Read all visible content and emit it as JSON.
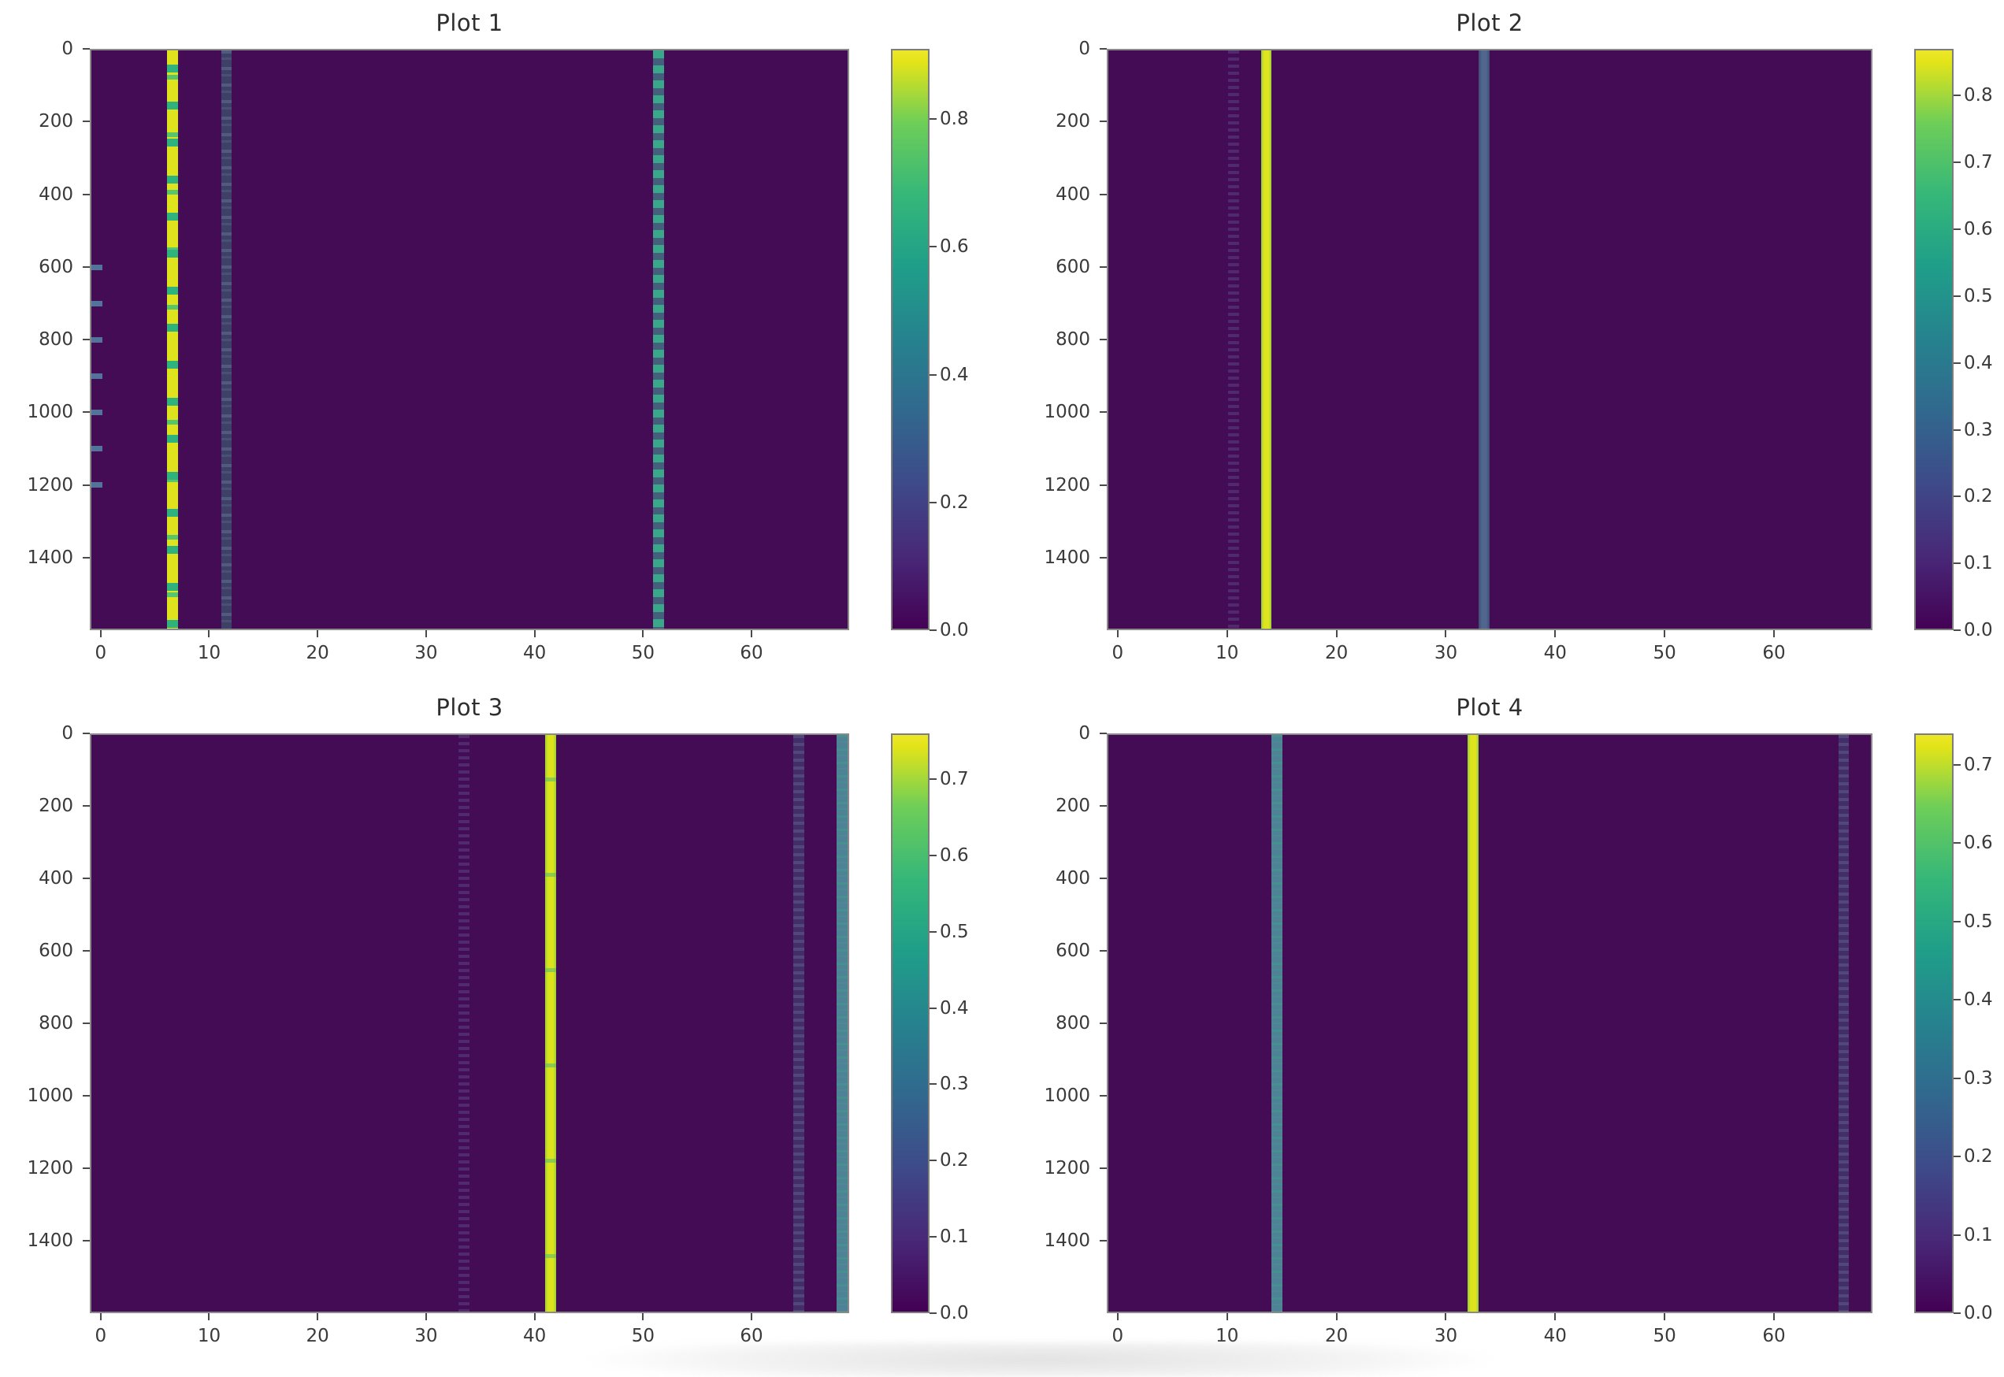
{
  "figure": {
    "background": "#ffffff",
    "colormap": "viridis",
    "background_value_color": "#440c54",
    "grid": false,
    "layout": "2x2 subplots, each with right-side colorbar"
  },
  "chart_data": [
    {
      "id": "plot1",
      "type": "heatmap",
      "title": "Plot 1",
      "colormap": "viridis",
      "shape_rows": 1600,
      "shape_cols": 70,
      "x_range": [
        -0.5,
        69.5
      ],
      "y_range_top_to_bottom": [
        0,
        1600
      ],
      "x_ticks": [
        0,
        10,
        20,
        30,
        40,
        50,
        60
      ],
      "y_ticks": [
        0,
        200,
        400,
        600,
        800,
        1000,
        1200,
        1400
      ],
      "background_value": 0.0,
      "vmax": 0.91,
      "colorbar_ticks": [
        "0.0",
        "0.2",
        "0.4",
        "0.6",
        "0.8"
      ],
      "columns": [
        {
          "x": 0,
          "style": "edge-dashes",
          "approx_value": 0.2,
          "pattern": "sparse short dashes, rows ~600-1250 only",
          "band_top_frac": 0.37,
          "band_height_frac": 0.42
        },
        {
          "x": 7,
          "style": "yellow-green-dashed",
          "approx_value_range": [
            0.5,
            0.91
          ],
          "pattern": "dense dashes alternating yellow and green, full height"
        },
        {
          "x": 12,
          "style": "slate-stipple",
          "approx_value": 0.12,
          "pattern": "faint stippled column, full height"
        },
        {
          "x": 52,
          "style": "teal-dashed",
          "approx_value": 0.45,
          "pattern": "regular teal dashes over faint slate, full height"
        }
      ]
    },
    {
      "id": "plot2",
      "type": "heatmap",
      "title": "Plot 2",
      "colormap": "viridis",
      "shape_rows": 1600,
      "shape_cols": 70,
      "x_range": [
        -0.5,
        69.5
      ],
      "y_range_top_to_bottom": [
        0,
        1600
      ],
      "x_ticks": [
        0,
        10,
        20,
        30,
        40,
        50,
        60
      ],
      "y_ticks": [
        0,
        200,
        400,
        600,
        800,
        1000,
        1200,
        1400
      ],
      "background_value": 0.0,
      "vmax": 0.87,
      "colorbar_ticks": [
        "0.0",
        "0.1",
        "0.2",
        "0.3",
        "0.4",
        "0.5",
        "0.6",
        "0.7",
        "0.8"
      ],
      "columns": [
        {
          "x": 11,
          "style": "xfaint-dotted",
          "approx_value": 0.05,
          "pattern": "barely visible dotted column"
        },
        {
          "x": 14,
          "style": "yellow-solid",
          "approx_value": 0.87,
          "pattern": "solid bright column, full height"
        },
        {
          "x": 34,
          "style": "slate-solid",
          "approx_value": 0.25,
          "pattern": "solid slate-blue column, full height"
        }
      ]
    },
    {
      "id": "plot3",
      "type": "heatmap",
      "title": "Plot 3",
      "colormap": "viridis",
      "shape_rows": 1600,
      "shape_cols": 70,
      "x_range": [
        -0.5,
        69.5
      ],
      "y_range_top_to_bottom": [
        0,
        1600
      ],
      "x_ticks": [
        0,
        10,
        20,
        30,
        40,
        50,
        60
      ],
      "y_ticks": [
        0,
        200,
        400,
        600,
        800,
        1000,
        1200,
        1400
      ],
      "background_value": 0.0,
      "vmax": 0.76,
      "colorbar_ticks": [
        "0.0",
        "0.1",
        "0.2",
        "0.3",
        "0.4",
        "0.5",
        "0.6",
        "0.7"
      ],
      "columns": [
        {
          "x": 34,
          "style": "xfaint-dotted",
          "approx_value": 0.04,
          "pattern": "barely visible dotted column"
        },
        {
          "x": 42,
          "style": "yellow-solid-fleck",
          "approx_value": 0.76,
          "pattern": "solid bright column with sparse teal flecks, full height"
        },
        {
          "x": 65,
          "style": "slate-faint",
          "approx_value": 0.1,
          "pattern": "faint stippled slate column, full height"
        },
        {
          "x": 69,
          "style": "teal-solid",
          "approx_value": 0.35,
          "pattern": "teal column at right edge, full height"
        }
      ]
    },
    {
      "id": "plot4",
      "type": "heatmap",
      "title": "Plot 4",
      "colormap": "viridis",
      "shape_rows": 1600,
      "shape_cols": 70,
      "x_range": [
        -0.5,
        69.5
      ],
      "y_range_top_to_bottom": [
        0,
        1600
      ],
      "x_ticks": [
        0,
        10,
        20,
        30,
        40,
        50,
        60
      ],
      "y_ticks": [
        0,
        200,
        400,
        600,
        800,
        1000,
        1200,
        1400
      ],
      "background_value": 0.0,
      "vmax": 0.74,
      "colorbar_ticks": [
        "0.0",
        "0.1",
        "0.2",
        "0.3",
        "0.4",
        "0.5",
        "0.6",
        "0.7"
      ],
      "columns": [
        {
          "x": 15,
          "style": "teal-solid",
          "approx_value": 0.45,
          "pattern": "solid teal column with green stipple, full height"
        },
        {
          "x": 33,
          "style": "yellow-solid",
          "approx_value": 0.74,
          "pattern": "solid bright column, full height"
        },
        {
          "x": 67,
          "style": "slate-faint",
          "approx_value": 0.07,
          "pattern": "very faint stippled slate column, full height"
        }
      ]
    }
  ]
}
